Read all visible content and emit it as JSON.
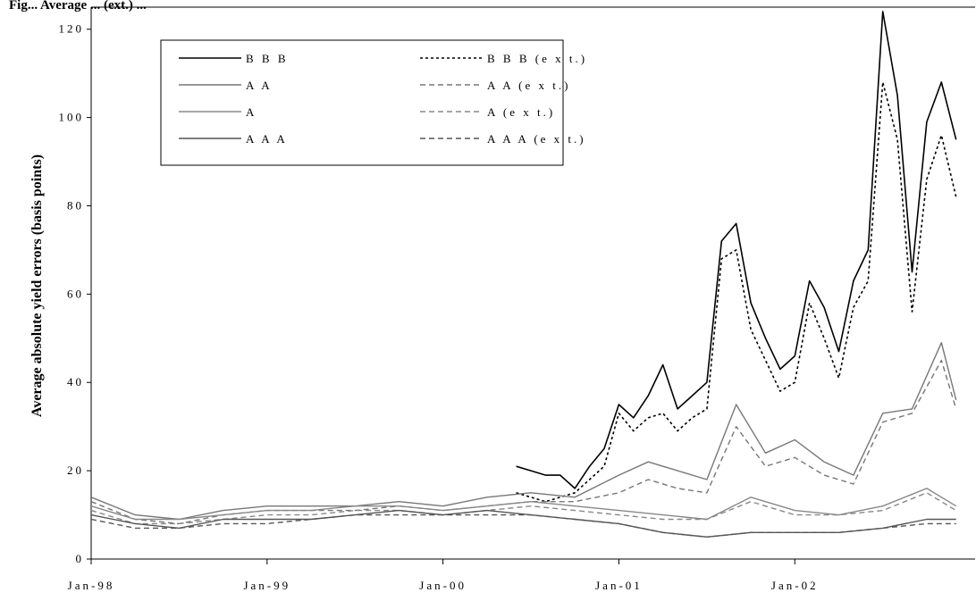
{
  "chart_data": {
    "type": "line",
    "title": "Fig... Average ... (ext.) ...",
    "ylabel": "Average absolute yield errors (basis points)",
    "xlabel": "",
    "ylim": [
      0,
      125
    ],
    "yticks": [
      0,
      20,
      40,
      60,
      80,
      100,
      120
    ],
    "xlim": [
      "1998-01",
      "2002-12"
    ],
    "xticks": [
      "Jan-98",
      "Jan-99",
      "Jan-00",
      "Jan-01",
      "Jan-02"
    ],
    "grid": false,
    "legend": {
      "placement": "top-left",
      "entries": [
        {
          "label": "B B B",
          "style": "solid",
          "color": "#000000"
        },
        {
          "label": "B B B (e x t.)",
          "style": "dotted",
          "color": "#000000"
        },
        {
          "label": "A A",
          "style": "solid",
          "color": "#777777"
        },
        {
          "label": "A A (e x t.)",
          "style": "dashed",
          "color": "#777777"
        },
        {
          "label": "A",
          "style": "solid",
          "color": "#888888"
        },
        {
          "label": "A (e x t.)",
          "style": "dashed",
          "color": "#888888"
        },
        {
          "label": "A A A",
          "style": "solid",
          "color": "#555555"
        },
        {
          "label": "A A A (e x t.)",
          "style": "dashed",
          "color": "#555555"
        }
      ]
    },
    "series": [
      {
        "name": "B B B",
        "style": "solid",
        "color": "#000000",
        "width": 1.6,
        "x": [
          "2000-06",
          "2000-07",
          "2000-08",
          "2000-09",
          "2000-10",
          "2000-11",
          "2000-12",
          "2001-01",
          "2001-02",
          "2001-03",
          "2001-04",
          "2001-05",
          "2001-06",
          "2001-07",
          "2001-08",
          "2001-09",
          "2001-10",
          "2001-11",
          "2001-12",
          "2002-01",
          "2002-02",
          "2002-03",
          "2002-04",
          "2002-05",
          "2002-06",
          "2002-07",
          "2002-08",
          "2002-09",
          "2002-10",
          "2002-11",
          "2002-12"
        ],
        "values": [
          21,
          20,
          19,
          19,
          16,
          21,
          25,
          35,
          32,
          37,
          44,
          34,
          37,
          40,
          72,
          76,
          58,
          50,
          43,
          46,
          63,
          57,
          47,
          63,
          70,
          124,
          105,
          65,
          99,
          108,
          95
        ]
      },
      {
        "name": "B B B (e x t.)",
        "style": "dotted",
        "color": "#000000",
        "width": 1.6,
        "x": [
          "2000-06",
          "2000-07",
          "2000-08",
          "2000-09",
          "2000-10",
          "2000-11",
          "2000-12",
          "2001-01",
          "2001-02",
          "2001-03",
          "2001-04",
          "2001-05",
          "2001-06",
          "2001-07",
          "2001-08",
          "2001-09",
          "2001-10",
          "2001-11",
          "2001-12",
          "2002-01",
          "2002-02",
          "2002-03",
          "2002-04",
          "2002-05",
          "2002-06",
          "2002-07",
          "2002-08",
          "2002-09",
          "2002-10",
          "2002-11",
          "2002-12"
        ],
        "values": [
          15,
          14,
          13,
          14,
          15,
          18,
          21,
          33,
          29,
          32,
          33,
          29,
          32,
          34,
          68,
          70,
          52,
          45,
          38,
          40,
          58,
          50,
          41,
          57,
          63,
          108,
          95,
          56,
          86,
          96,
          82
        ]
      },
      {
        "name": "A A",
        "style": "solid",
        "color": "#777777",
        "width": 1.4,
        "x": [
          "1998-01",
          "1998-04",
          "1998-07",
          "1998-10",
          "1999-01",
          "1999-04",
          "1999-07",
          "1999-10",
          "2000-01",
          "2000-04",
          "2000-07",
          "2000-10",
          "2001-01",
          "2001-03",
          "2001-05",
          "2001-07",
          "2001-09",
          "2001-11",
          "2002-01",
          "2002-03",
          "2002-05",
          "2002-07",
          "2002-09",
          "2002-11",
          "2002-12"
        ],
        "values": [
          14,
          10,
          9,
          11,
          12,
          12,
          12,
          13,
          12,
          14,
          15,
          14,
          19,
          22,
          20,
          18,
          35,
          24,
          27,
          22,
          19,
          33,
          34,
          49,
          36
        ]
      },
      {
        "name": "A A (e x t.)",
        "style": "dashed",
        "color": "#777777",
        "width": 1.4,
        "x": [
          "1998-01",
          "1998-04",
          "1998-07",
          "1998-10",
          "1999-01",
          "1999-04",
          "1999-07",
          "1999-10",
          "2000-01",
          "2000-04",
          "2000-07",
          "2000-10",
          "2001-01",
          "2001-03",
          "2001-05",
          "2001-07",
          "2001-09",
          "2001-11",
          "2002-01",
          "2002-03",
          "2002-05",
          "2002-07",
          "2002-09",
          "2002-11",
          "2002-12"
        ],
        "values": [
          13,
          9,
          8,
          10,
          11,
          11,
          11,
          12,
          11,
          12,
          13,
          13,
          15,
          18,
          16,
          15,
          30,
          21,
          23,
          19,
          17,
          31,
          33,
          45,
          34
        ]
      },
      {
        "name": "A",
        "style": "solid",
        "color": "#888888",
        "width": 1.4,
        "x": [
          "1998-01",
          "1998-04",
          "1998-07",
          "1998-10",
          "1999-01",
          "1999-04",
          "1999-07",
          "1999-10",
          "2000-01",
          "2000-04",
          "2000-07",
          "2000-10",
          "2001-01",
          "2001-04",
          "2001-07",
          "2001-10",
          "2002-01",
          "2002-04",
          "2002-07",
          "2002-10",
          "2002-12"
        ],
        "values": [
          12,
          9,
          9,
          10,
          11,
          11,
          12,
          12,
          11,
          12,
          13,
          12,
          11,
          10,
          9,
          14,
          11,
          10,
          12,
          16,
          12
        ]
      },
      {
        "name": "A (e x t.)",
        "style": "dashed",
        "color": "#888888",
        "width": 1.4,
        "x": [
          "1998-01",
          "1998-04",
          "1998-07",
          "1998-10",
          "1999-01",
          "1999-04",
          "1999-07",
          "1999-10",
          "2000-01",
          "2000-04",
          "2000-07",
          "2000-10",
          "2001-01",
          "2001-04",
          "2001-07",
          "2001-10",
          "2002-01",
          "2002-04",
          "2002-07",
          "2002-10",
          "2002-12"
        ],
        "values": [
          11,
          8,
          8,
          9,
          10,
          10,
          11,
          11,
          10,
          11,
          12,
          11,
          10,
          9,
          9,
          13,
          10,
          10,
          11,
          15,
          11
        ]
      },
      {
        "name": "A A A",
        "style": "solid",
        "color": "#555555",
        "width": 1.4,
        "x": [
          "1998-01",
          "1998-04",
          "1998-07",
          "1998-10",
          "1999-01",
          "1999-04",
          "1999-07",
          "1999-10",
          "2000-01",
          "2000-04",
          "2000-07",
          "2000-10",
          "2001-01",
          "2001-04",
          "2001-07",
          "2001-10",
          "2002-01",
          "2002-04",
          "2002-07",
          "2002-10",
          "2002-12"
        ],
        "values": [
          10,
          8,
          7,
          9,
          9,
          9,
          10,
          11,
          10,
          11,
          10,
          9,
          8,
          6,
          5,
          6,
          6,
          6,
          7,
          9,
          9
        ]
      },
      {
        "name": "A A A (e x t.)",
        "style": "dashed",
        "color": "#555555",
        "width": 1.4,
        "x": [
          "1998-01",
          "1998-04",
          "1998-07",
          "1998-10",
          "1999-01",
          "1999-04",
          "1999-07",
          "1999-10",
          "2000-01",
          "2000-04",
          "2000-07",
          "2000-10",
          "2001-01",
          "2001-04",
          "2001-07",
          "2001-10",
          "2002-01",
          "2002-04",
          "2002-07",
          "2002-10",
          "2002-12"
        ],
        "values": [
          9,
          7,
          7,
          8,
          8,
          9,
          10,
          10,
          10,
          10,
          10,
          9,
          8,
          6,
          5,
          6,
          6,
          6,
          7,
          8,
          8
        ]
      }
    ]
  }
}
